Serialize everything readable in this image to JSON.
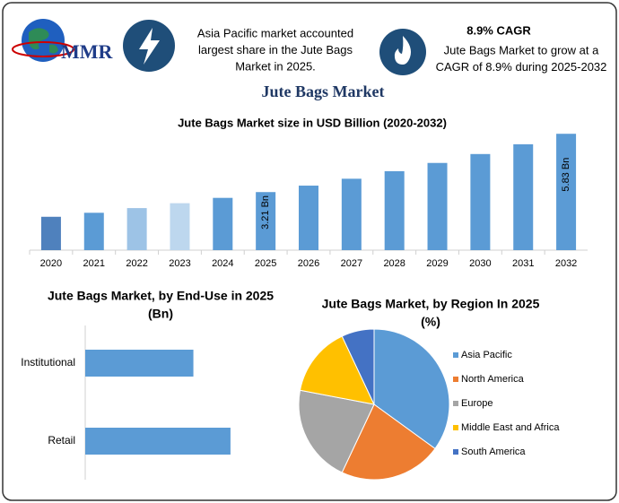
{
  "header": {
    "logo": "MMR",
    "fact_1": [
      "Asia Pacific market accounted",
      "largest share in the Jute Bags",
      "Market in 2025."
    ],
    "fact_2_title": "8.9% CAGR",
    "fact_2": [
      "Jute Bags Market to grow at a",
      "CAGR of 8.9% during 2025-2032"
    ],
    "title": "Jute Bags Market"
  },
  "chart_data": [
    {
      "type": "bar",
      "title": "Jute Bags Market size in USD Billion (2020-2032)",
      "categories": [
        "2020",
        "2021",
        "2022",
        "2023",
        "2024",
        "2025",
        "2026",
        "2027",
        "2028",
        "2029",
        "2030",
        "2031",
        "2032"
      ],
      "values": [
        2.1,
        2.28,
        2.49,
        2.71,
        2.95,
        3.21,
        3.5,
        3.81,
        4.15,
        4.52,
        4.92,
        5.36,
        5.83
      ],
      "value_labels": [
        null,
        null,
        null,
        null,
        null,
        "3.21 Bn",
        null,
        null,
        null,
        null,
        null,
        null,
        "5.83 Bn"
      ],
      "colors": [
        "#4f81bd",
        "#5b9bd5",
        "#9dc3e6",
        "#bdd7ee",
        "#5b9bd5",
        "#5b9bd5",
        "#5b9bd5",
        "#5b9bd5",
        "#5b9bd5",
        "#5b9bd5",
        "#5b9bd5",
        "#5b9bd5",
        "#5b9bd5"
      ],
      "ylim": [
        0.6,
        6.0
      ]
    },
    {
      "type": "barh",
      "title": [
        "Jute Bags Market, by End-Use in 2025",
        "(Bn)"
      ],
      "categories": [
        "Institutional",
        "Retail"
      ],
      "values": [
        1.37,
        1.84
      ],
      "color": "#5b9bd5",
      "xlim": [
        0,
        3
      ]
    },
    {
      "type": "pie",
      "title": [
        "Jute Bags Market, by Region In 2025",
        "(%)"
      ],
      "categories": [
        "Asia Pacific",
        "North America",
        "Europe",
        "Middle East and Africa",
        "South America"
      ],
      "values": [
        35,
        22,
        21,
        15,
        7
      ],
      "colors": [
        "#5b9bd5",
        "#ed7d31",
        "#a5a5a5",
        "#ffc000",
        "#4472c4"
      ],
      "legend": "right"
    }
  ]
}
